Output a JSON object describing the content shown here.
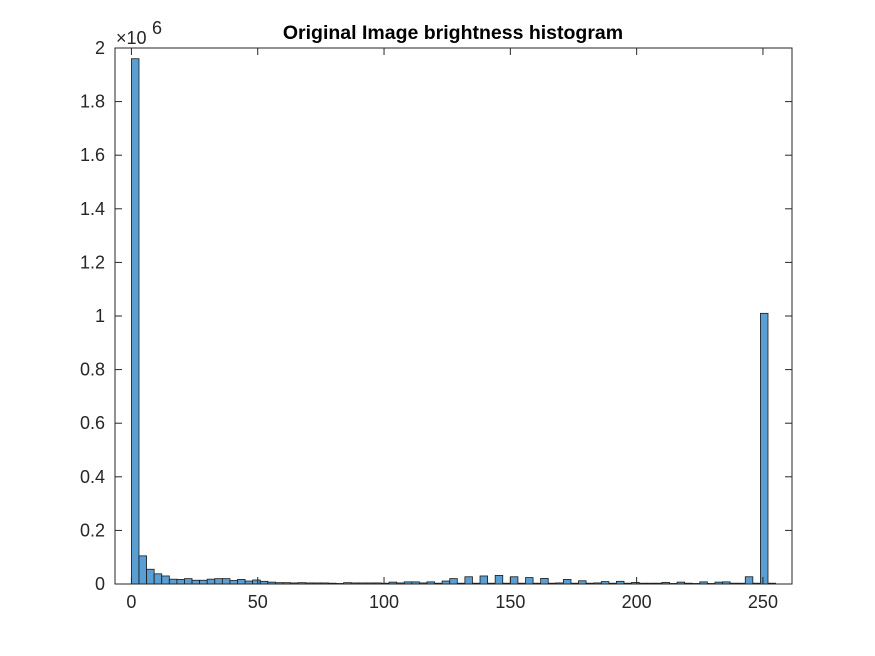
{
  "chart_data": {
    "type": "bar",
    "title": "Original Image brightness histogram",
    "xlabel": "",
    "ylabel": "",
    "y_exponent_label": "×10",
    "y_exponent_power": "6",
    "xlim": [
      -6.5,
      261.5
    ],
    "ylim": [
      0,
      2000000
    ],
    "y_display_scale": 1000000,
    "bar_width": 3,
    "x_ticks": [
      0,
      50,
      100,
      150,
      200,
      250
    ],
    "x_tick_labels": [
      "0",
      "50",
      "100",
      "150",
      "200",
      "250"
    ],
    "y_ticks": [
      0,
      200000,
      400000,
      600000,
      800000,
      1000000,
      1200000,
      1400000,
      1600000,
      1800000,
      2000000
    ],
    "y_tick_labels": [
      "0",
      "0.2",
      "0.4",
      "0.6",
      "0.8",
      "1",
      "1.2",
      "1.4",
      "1.6",
      "1.8",
      "2"
    ],
    "bar_color": "#5a9fd4",
    "edge_color": "#1a1a1a",
    "grid": false,
    "bin_centers": [
      1.5,
      4.5,
      7.5,
      10.5,
      13.5,
      16.5,
      19.5,
      22.5,
      25.5,
      28.5,
      31.5,
      34.5,
      37.5,
      40.5,
      43.5,
      46.5,
      49.5,
      52.5,
      55.5,
      58.5,
      61.5,
      64.5,
      67.5,
      70.5,
      73.5,
      76.5,
      79.5,
      82.5,
      85.5,
      88.5,
      91.5,
      94.5,
      97.5,
      100.5,
      103.5,
      106.5,
      109.5,
      112.5,
      115.5,
      118.5,
      121.5,
      124.5,
      127.5,
      130.5,
      133.5,
      136.5,
      139.5,
      142.5,
      145.5,
      148.5,
      151.5,
      154.5,
      157.5,
      160.5,
      163.5,
      166.5,
      169.5,
      172.5,
      175.5,
      178.5,
      181.5,
      184.5,
      187.5,
      190.5,
      193.5,
      196.5,
      199.5,
      202.5,
      205.5,
      208.5,
      211.5,
      214.5,
      217.5,
      220.5,
      223.5,
      226.5,
      229.5,
      232.5,
      235.5,
      238.5,
      241.5,
      244.5,
      247.5,
      250.5,
      253.5
    ],
    "values": [
      1960000,
      105000,
      55000,
      38000,
      30000,
      18000,
      17000,
      20000,
      14000,
      14000,
      18000,
      20000,
      20000,
      13000,
      17000,
      11000,
      15000,
      10000,
      7000,
      5000,
      5000,
      4000,
      5000,
      4000,
      4000,
      4000,
      3000,
      2000,
      5000,
      4000,
      4000,
      4000,
      4000,
      3000,
      7000,
      4000,
      8000,
      8000,
      4000,
      8000,
      3000,
      11000,
      20000,
      3000,
      27000,
      3000,
      30000,
      3000,
      32000,
      3000,
      27000,
      3000,
      24000,
      3000,
      21000,
      3000,
      4000,
      17000,
      3000,
      12000,
      3000,
      4000,
      9000,
      3000,
      10000,
      3000,
      6000,
      3000,
      3000,
      3000,
      6000,
      2000,
      7000,
      3000,
      2000,
      8000,
      2000,
      7000,
      8000,
      3000,
      3000,
      27000,
      3000,
      1010000,
      3000
    ]
  }
}
